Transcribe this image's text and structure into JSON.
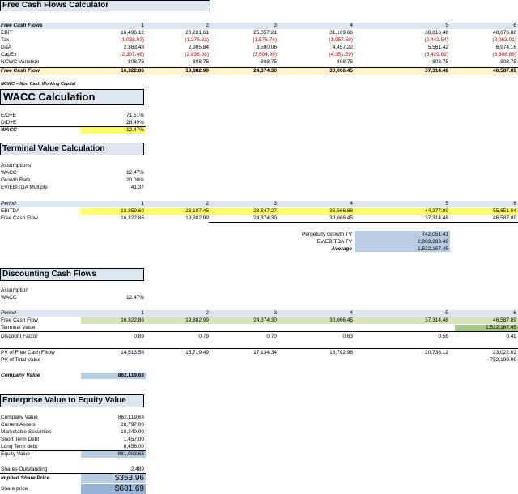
{
  "fcf": {
    "title": "Free Cash Flows Calculator",
    "header": {
      "label": "Free Cash Flows",
      "periods": [
        "1",
        "2",
        "3",
        "4",
        "5",
        "6"
      ]
    },
    "rows": [
      {
        "label": "EBIT",
        "values": [
          "16,496.12",
          "20,281.61",
          "25,057.21",
          "31,109.66",
          "38,816.48",
          "48,676.88"
        ],
        "red": false
      },
      {
        "label": "Tax",
        "values": [
          "(1,038.03)",
          "(1,276.23)",
          "(1,576.74)",
          "(1,957.59)",
          "(2,442.54)",
          "(3,063.01)"
        ],
        "red": true
      },
      {
        "label": "D&A",
        "values": [
          "2,363.48",
          "2,905.84",
          "3,590.06",
          "4,457.22",
          "5,561.42",
          "6,974.16"
        ],
        "red": false
      },
      {
        "label": "CapEx",
        "values": [
          "(2,307.46)",
          "(2,836.98)",
          "(3,504.98)",
          "(4,351.59)",
          "(5,429.62)",
          "(6,808.88)"
        ],
        "red": true
      },
      {
        "label": "NCWC Variation",
        "values": [
          "808.75",
          "808.75",
          "808.75",
          "808.75",
          "808.75",
          "808.75"
        ],
        "red": false
      }
    ],
    "total": {
      "label": "Free Cash Flow",
      "values": [
        "16,322.86",
        "19,882.99",
        "24,374.30",
        "30,066.45",
        "37,314.48",
        "46,587.89"
      ]
    },
    "note": "NCWC = Non Cash Working Capital"
  },
  "wacc": {
    "title": "WACC Calculation",
    "rows": [
      {
        "label": "E/D+E",
        "value": "71.51%"
      },
      {
        "label": "D/D+E",
        "value": "28.49%"
      },
      {
        "label": "WACC",
        "value": "12.47%"
      }
    ]
  },
  "tv": {
    "title": "Terminal Value Calculation",
    "assumptions_label": "Assumptions",
    "assumptions": [
      {
        "label": "WACC",
        "value": "12.47%"
      },
      {
        "label": "Growth Rate",
        "value": "20.00%"
      },
      {
        "label": "EV/EBITDA Multiple",
        "value": "41.37"
      }
    ],
    "period": {
      "label": "Period",
      "values": [
        "1",
        "2",
        "3",
        "4",
        "5",
        "6"
      ]
    },
    "ebitda": {
      "label": "EBITDA",
      "values": [
        "18,859.60",
        "23,187.45",
        "28,647.27",
        "35,566.88",
        "44,377.89",
        "55,651.04"
      ]
    },
    "fcf": {
      "label": "Free Cash Flow",
      "values": [
        "16,322.86",
        "19,882.99",
        "24,374.30",
        "30,066.45",
        "37,314.48",
        "46,587.89"
      ]
    },
    "summary": [
      {
        "label": "Perpetuity Growth TV",
        "value": "742,051.41"
      },
      {
        "label": "EV/EBITDA TV",
        "value": "2,302,283.49"
      },
      {
        "label": "Average",
        "value": "1,522,167.45"
      }
    ]
  },
  "dcf": {
    "title": "Discounting Cash Flows",
    "assumptions_label": "Assumption",
    "wacc": {
      "label": "WACC",
      "value": "12.47%"
    },
    "period": {
      "label": "Period",
      "values": [
        "1",
        "2",
        "3",
        "4",
        "5",
        "6"
      ]
    },
    "fcf": {
      "label": "Free Cash Flow",
      "values": [
        "16,322.86",
        "19,882.99",
        "24,374.30",
        "30,066.45",
        "37,314.48",
        "46,587.89"
      ]
    },
    "terminal": {
      "label": "Terminal Value",
      "value": "1,522,167.45"
    },
    "discount": {
      "label": "Discount Factor",
      "values": [
        "0.89",
        "0.79",
        "0.70",
        "0.63",
        "0.56",
        "0.49"
      ]
    },
    "pv_fcf": {
      "label": "PV of Free Cash Flkow",
      "values": [
        "14,513.58",
        "15,719.49",
        "17,134.34",
        "18,792.98",
        "20,738.12",
        "23,022.02"
      ]
    },
    "pv_tv": {
      "label": "PV of Total Value",
      "value": "752,199.09"
    },
    "company_value": {
      "label": "Company Value",
      "value": "862,119.63"
    }
  },
  "equity": {
    "title": "Enterprise Value to Equity Value",
    "rows": [
      {
        "label": "Company Value",
        "value": "862,119.63"
      },
      {
        "label": "Current Assets",
        "value": "28,797.00"
      },
      {
        "label": "Marketable Securities",
        "value": "10,240.00"
      },
      {
        "label": "Short Term Debt",
        "value": "1,457.00"
      },
      {
        "label": "Long Term debt",
        "value": "8,456.00"
      }
    ],
    "equity_value": {
      "label": "Equity Value",
      "value": "881,003.63"
    },
    "shares": {
      "label": "Shares Outstanding",
      "value": "2,489"
    },
    "implied": {
      "label": "Implied Share Price",
      "value": "$353.96"
    },
    "price": {
      "label": "Share price",
      "value": "$681.69"
    }
  }
}
